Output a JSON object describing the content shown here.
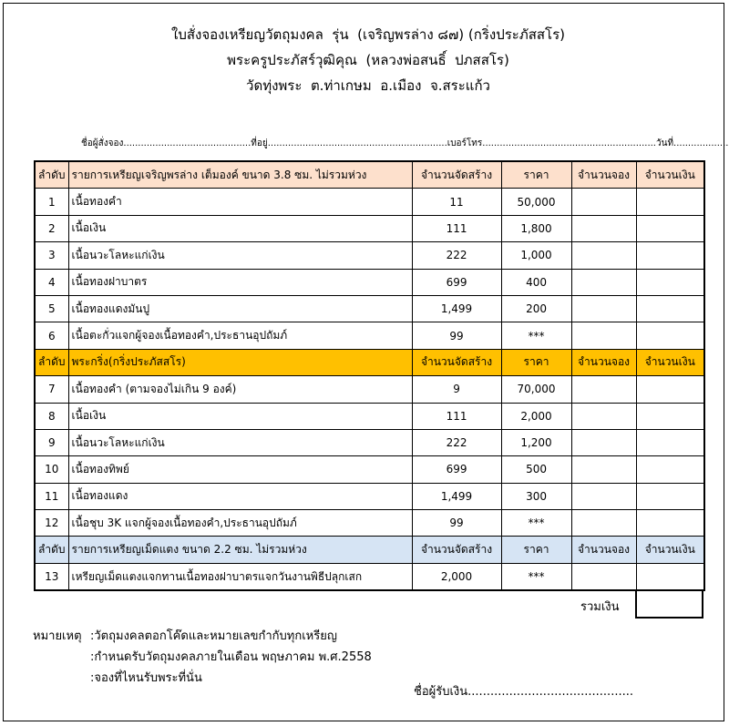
{
  "header": {
    "title_lines": [
      "ใบสั่งจองเหรียญวัตถุมงคล  รุ่น  (เจริญพรล่าง ๘๗) (กริ่งประภัสสโร)",
      "พระครูประภัสร์วุฒิคุณ  (หลวงพ่อสนธิ์  ปภสสโร)",
      "วัดทุ่งพระ  ต.ท่าเกษม  อ.เมือง  จ.สระแก้ว"
    ]
  },
  "form_line": "ชื่อผู้สั่งจอง............................................ที่อยู่..............................................................เบอร์โทร............................................................วันที่............................",
  "sections": [
    {
      "header": [
        "ลำดับ",
        "รายการเหรียญเจริญพรล่าง เต็มองค์ ขนาด 3.8 ซม. ไม่รวมห่วง",
        "จำนวนจัดสร้าง",
        "ราคา",
        "จำนวนจอง",
        "จำนวนเงิน"
      ],
      "rows": [
        [
          "1",
          "เนื้อทองคำ",
          "11",
          "50,000"
        ],
        [
          "2",
          "เนื้อเงิน",
          "111",
          "1,800"
        ],
        [
          "3",
          "เนื้อนวะโลหะแก่เงิน",
          "222",
          "1,000"
        ],
        [
          "4",
          "เนื้อทองฝาบาตร",
          "699",
          "400"
        ],
        [
          "5",
          "เนื้อทองแดงมันปู",
          "1,499",
          "200"
        ],
        [
          "6",
          "เนื้อตะกั่วแจกผู้จองเนื้อทองคำ,ประธานอุปถัมภ์",
          "99",
          "***"
        ]
      ]
    },
    {
      "header": [
        "ลำดับ",
        "พระกริ่ง(กริ่งประภัสสโร)",
        "จำนวนจัดสร้าง",
        "ราคา",
        "จำนวนจอง",
        "จำนวนเงิน"
      ],
      "rows": [
        [
          "7",
          "เนื้อทองคำ (ตามจองไม่เกิน 9 องค์)",
          "9",
          "70,000"
        ],
        [
          "8",
          "เนื้อเงิน",
          "111",
          "2,000"
        ],
        [
          "9",
          "เนื้อนวะโลหะแก่เงิน",
          "222",
          "1,200"
        ],
        [
          "10",
          "เนื้อทองทิพย์",
          "699",
          "500"
        ],
        [
          "11",
          "เนื้อทองแดง",
          "1,499",
          "300"
        ],
        [
          "12",
          "เนื้อชุบ 3K แจกผู้จองเนื้อทองคำ,ประธานอุปถัมภ์",
          "99",
          "***"
        ]
      ]
    },
    {
      "header": [
        "ลำดับ",
        "รายการเหรียญเม็ดแตง ขนาด 2.2 ซม. ไม่รวมห่วง",
        "จำนวนจัดสร้าง",
        "ราคา",
        "จำนวนจอง",
        "จำนวนเงิน"
      ],
      "rows": [
        [
          "13",
          "เหรียญเม็ดแตงแจกทานเนื้อทองฝาบาตรแจกวันงานพิธีปลุกเสก",
          "2,000",
          "***"
        ]
      ]
    }
  ],
  "total_label": "รวมเงิน",
  "notes": {
    "label": "หมายเหตุ",
    "items": [
      ":วัตถุมงคลตอกโค๊ดและหมายเลขกำกับทุกเหรียญ",
      ":กำหนดรับวัตถุมงคลภายในเดือน พฤษภาคม พ.ศ.2558",
      ":จองที่ไหนรับพระที่นั่น"
    ]
  },
  "signature": "ชื่อผู้รับเงิน............................................"
}
